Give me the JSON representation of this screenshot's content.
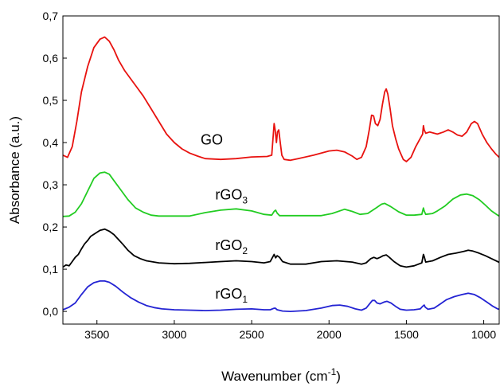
{
  "chart_data": {
    "type": "line",
    "xlabel": "Wavenumber (cm",
    "xlabel_sup": "-1",
    "xlabel_end": ")",
    "ylabel": "Absorbance (a.u.)",
    "xlim": [
      3720,
      900
    ],
    "ylim": [
      -0.03,
      0.7
    ],
    "x_reversed": true,
    "x_ticks": [
      3500,
      3000,
      2500,
      2000,
      1500,
      1000
    ],
    "x_tick_labels": [
      "3500",
      "3000",
      "2500",
      "2000",
      "1500",
      "1000"
    ],
    "y_ticks": [
      0.0,
      0.1,
      0.2,
      0.3,
      0.4,
      0.5,
      0.6,
      0.7
    ],
    "y_tick_labels": [
      "0,0",
      "0,1",
      "0,2",
      "0,3",
      "0,4",
      "0,5",
      "0,6",
      "0,7"
    ],
    "grid": false,
    "series": [
      {
        "label_main": "GO",
        "label_sub": "",
        "color": "#e8120f",
        "label_x": 2830,
        "label_y": 0.395,
        "points": [
          [
            3720,
            0.37
          ],
          [
            3690,
            0.365
          ],
          [
            3660,
            0.39
          ],
          [
            3630,
            0.45
          ],
          [
            3600,
            0.52
          ],
          [
            3560,
            0.58
          ],
          [
            3520,
            0.625
          ],
          [
            3480,
            0.645
          ],
          [
            3450,
            0.65
          ],
          [
            3420,
            0.64
          ],
          [
            3390,
            0.62
          ],
          [
            3360,
            0.595
          ],
          [
            3320,
            0.57
          ],
          [
            3280,
            0.55
          ],
          [
            3240,
            0.53
          ],
          [
            3200,
            0.51
          ],
          [
            3150,
            0.48
          ],
          [
            3100,
            0.45
          ],
          [
            3050,
            0.42
          ],
          [
            3000,
            0.4
          ],
          [
            2950,
            0.385
          ],
          [
            2900,
            0.375
          ],
          [
            2850,
            0.368
          ],
          [
            2800,
            0.362
          ],
          [
            2700,
            0.36
          ],
          [
            2600,
            0.362
          ],
          [
            2500,
            0.366
          ],
          [
            2400,
            0.367
          ],
          [
            2370,
            0.37
          ],
          [
            2360,
            0.42
          ],
          [
            2355,
            0.445
          ],
          [
            2348,
            0.43
          ],
          [
            2340,
            0.4
          ],
          [
            2333,
            0.425
          ],
          [
            2325,
            0.43
          ],
          [
            2315,
            0.4
          ],
          [
            2305,
            0.37
          ],
          [
            2290,
            0.36
          ],
          [
            2250,
            0.358
          ],
          [
            2200,
            0.362
          ],
          [
            2100,
            0.37
          ],
          [
            2000,
            0.38
          ],
          [
            1950,
            0.382
          ],
          [
            1900,
            0.378
          ],
          [
            1850,
            0.368
          ],
          [
            1820,
            0.36
          ],
          [
            1790,
            0.365
          ],
          [
            1760,
            0.39
          ],
          [
            1740,
            0.43
          ],
          [
            1725,
            0.465
          ],
          [
            1712,
            0.463
          ],
          [
            1700,
            0.445
          ],
          [
            1685,
            0.44
          ],
          [
            1670,
            0.455
          ],
          [
            1655,
            0.49
          ],
          [
            1640,
            0.52
          ],
          [
            1630,
            0.527
          ],
          [
            1620,
            0.515
          ],
          [
            1605,
            0.48
          ],
          [
            1590,
            0.44
          ],
          [
            1570,
            0.41
          ],
          [
            1550,
            0.385
          ],
          [
            1520,
            0.36
          ],
          [
            1500,
            0.355
          ],
          [
            1470,
            0.365
          ],
          [
            1440,
            0.39
          ],
          [
            1410,
            0.41
          ],
          [
            1395,
            0.42
          ],
          [
            1390,
            0.44
          ],
          [
            1385,
            0.43
          ],
          [
            1375,
            0.422
          ],
          [
            1350,
            0.425
          ],
          [
            1300,
            0.42
          ],
          [
            1260,
            0.425
          ],
          [
            1230,
            0.43
          ],
          [
            1200,
            0.425
          ],
          [
            1170,
            0.418
          ],
          [
            1140,
            0.415
          ],
          [
            1110,
            0.425
          ],
          [
            1080,
            0.445
          ],
          [
            1060,
            0.45
          ],
          [
            1040,
            0.445
          ],
          [
            1010,
            0.42
          ],
          [
            980,
            0.4
          ],
          [
            950,
            0.385
          ],
          [
            920,
            0.372
          ],
          [
            900,
            0.365
          ]
        ]
      },
      {
        "label_main": "rGO",
        "label_sub": "3",
        "color": "#22cc22",
        "label_x": 2735,
        "label_y": 0.265,
        "points": [
          [
            3720,
            0.225
          ],
          [
            3680,
            0.226
          ],
          [
            3640,
            0.235
          ],
          [
            3600,
            0.255
          ],
          [
            3560,
            0.285
          ],
          [
            3520,
            0.315
          ],
          [
            3480,
            0.328
          ],
          [
            3450,
            0.33
          ],
          [
            3420,
            0.325
          ],
          [
            3390,
            0.31
          ],
          [
            3350,
            0.29
          ],
          [
            3300,
            0.265
          ],
          [
            3250,
            0.245
          ],
          [
            3200,
            0.235
          ],
          [
            3150,
            0.228
          ],
          [
            3100,
            0.226
          ],
          [
            3000,
            0.226
          ],
          [
            2900,
            0.226
          ],
          [
            2800,
            0.234
          ],
          [
            2700,
            0.24
          ],
          [
            2600,
            0.243
          ],
          [
            2500,
            0.238
          ],
          [
            2420,
            0.23
          ],
          [
            2370,
            0.228
          ],
          [
            2355,
            0.237
          ],
          [
            2345,
            0.24
          ],
          [
            2335,
            0.233
          ],
          [
            2320,
            0.227
          ],
          [
            2250,
            0.227
          ],
          [
            2150,
            0.227
          ],
          [
            2050,
            0.227
          ],
          [
            1980,
            0.232
          ],
          [
            1900,
            0.242
          ],
          [
            1850,
            0.237
          ],
          [
            1800,
            0.23
          ],
          [
            1750,
            0.232
          ],
          [
            1700,
            0.244
          ],
          [
            1660,
            0.254
          ],
          [
            1640,
            0.256
          ],
          [
            1600,
            0.248
          ],
          [
            1550,
            0.236
          ],
          [
            1500,
            0.228
          ],
          [
            1450,
            0.228
          ],
          [
            1400,
            0.23
          ],
          [
            1390,
            0.245
          ],
          [
            1385,
            0.238
          ],
          [
            1375,
            0.23
          ],
          [
            1330,
            0.232
          ],
          [
            1300,
            0.238
          ],
          [
            1250,
            0.25
          ],
          [
            1200,
            0.266
          ],
          [
            1150,
            0.276
          ],
          [
            1110,
            0.278
          ],
          [
            1070,
            0.274
          ],
          [
            1030,
            0.265
          ],
          [
            990,
            0.252
          ],
          [
            950,
            0.238
          ],
          [
            910,
            0.228
          ],
          [
            900,
            0.226
          ]
        ]
      },
      {
        "label_main": "rGO",
        "label_sub": "2",
        "color": "#000000",
        "label_x": 2735,
        "label_y": 0.145,
        "points": [
          [
            3720,
            0.105
          ],
          [
            3700,
            0.11
          ],
          [
            3680,
            0.108
          ],
          [
            3660,
            0.118
          ],
          [
            3640,
            0.128
          ],
          [
            3620,
            0.135
          ],
          [
            3600,
            0.148
          ],
          [
            3580,
            0.16
          ],
          [
            3560,
            0.168
          ],
          [
            3540,
            0.178
          ],
          [
            3510,
            0.185
          ],
          [
            3480,
            0.192
          ],
          [
            3450,
            0.195
          ],
          [
            3420,
            0.19
          ],
          [
            3390,
            0.182
          ],
          [
            3360,
            0.17
          ],
          [
            3330,
            0.158
          ],
          [
            3300,
            0.145
          ],
          [
            3260,
            0.132
          ],
          [
            3220,
            0.125
          ],
          [
            3180,
            0.12
          ],
          [
            3100,
            0.115
          ],
          [
            3000,
            0.113
          ],
          [
            2900,
            0.114
          ],
          [
            2800,
            0.116
          ],
          [
            2700,
            0.118
          ],
          [
            2600,
            0.12
          ],
          [
            2500,
            0.118
          ],
          [
            2420,
            0.115
          ],
          [
            2380,
            0.118
          ],
          [
            2365,
            0.128
          ],
          [
            2355,
            0.135
          ],
          [
            2345,
            0.127
          ],
          [
            2335,
            0.132
          ],
          [
            2320,
            0.128
          ],
          [
            2300,
            0.118
          ],
          [
            2250,
            0.112
          ],
          [
            2150,
            0.112
          ],
          [
            2050,
            0.118
          ],
          [
            1950,
            0.12
          ],
          [
            1850,
            0.117
          ],
          [
            1790,
            0.112
          ],
          [
            1760,
            0.115
          ],
          [
            1730,
            0.125
          ],
          [
            1710,
            0.128
          ],
          [
            1690,
            0.125
          ],
          [
            1670,
            0.128
          ],
          [
            1650,
            0.132
          ],
          [
            1630,
            0.134
          ],
          [
            1610,
            0.128
          ],
          [
            1580,
            0.118
          ],
          [
            1540,
            0.108
          ],
          [
            1500,
            0.105
          ],
          [
            1450,
            0.108
          ],
          [
            1400,
            0.115
          ],
          [
            1390,
            0.135
          ],
          [
            1385,
            0.13
          ],
          [
            1375,
            0.117
          ],
          [
            1330,
            0.12
          ],
          [
            1280,
            0.128
          ],
          [
            1230,
            0.135
          ],
          [
            1180,
            0.138
          ],
          [
            1130,
            0.142
          ],
          [
            1100,
            0.145
          ],
          [
            1070,
            0.143
          ],
          [
            1030,
            0.138
          ],
          [
            990,
            0.132
          ],
          [
            950,
            0.125
          ],
          [
            910,
            0.118
          ],
          [
            900,
            0.116
          ]
        ]
      },
      {
        "label_main": "rGO",
        "label_sub": "1",
        "color": "#2323d3",
        "label_x": 2735,
        "label_y": 0.03,
        "points": [
          [
            3720,
            0.004
          ],
          [
            3680,
            0.01
          ],
          [
            3640,
            0.02
          ],
          [
            3600,
            0.04
          ],
          [
            3560,
            0.058
          ],
          [
            3520,
            0.068
          ],
          [
            3480,
            0.072
          ],
          [
            3450,
            0.072
          ],
          [
            3420,
            0.069
          ],
          [
            3380,
            0.06
          ],
          [
            3330,
            0.045
          ],
          [
            3280,
            0.032
          ],
          [
            3230,
            0.022
          ],
          [
            3180,
            0.014
          ],
          [
            3130,
            0.009
          ],
          [
            3080,
            0.006
          ],
          [
            3000,
            0.004
          ],
          [
            2900,
            0.003
          ],
          [
            2800,
            0.002
          ],
          [
            2700,
            0.003
          ],
          [
            2600,
            0.005
          ],
          [
            2500,
            0.006
          ],
          [
            2420,
            0.004
          ],
          [
            2380,
            0.004
          ],
          [
            2360,
            0.007
          ],
          [
            2348,
            0.008
          ],
          [
            2335,
            0.004
          ],
          [
            2300,
            0.001
          ],
          [
            2250,
            0.0
          ],
          [
            2150,
            0.002
          ],
          [
            2050,
            0.008
          ],
          [
            1980,
            0.014
          ],
          [
            1930,
            0.015
          ],
          [
            1880,
            0.012
          ],
          [
            1830,
            0.006
          ],
          [
            1790,
            0.003
          ],
          [
            1760,
            0.008
          ],
          [
            1740,
            0.017
          ],
          [
            1720,
            0.026
          ],
          [
            1705,
            0.026
          ],
          [
            1690,
            0.02
          ],
          [
            1670,
            0.018
          ],
          [
            1645,
            0.022
          ],
          [
            1625,
            0.024
          ],
          [
            1600,
            0.02
          ],
          [
            1570,
            0.012
          ],
          [
            1540,
            0.005
          ],
          [
            1500,
            0.003
          ],
          [
            1450,
            0.004
          ],
          [
            1410,
            0.006
          ],
          [
            1395,
            0.012
          ],
          [
            1385,
            0.015
          ],
          [
            1378,
            0.01
          ],
          [
            1360,
            0.005
          ],
          [
            1320,
            0.008
          ],
          [
            1280,
            0.018
          ],
          [
            1240,
            0.028
          ],
          [
            1190,
            0.035
          ],
          [
            1140,
            0.04
          ],
          [
            1100,
            0.043
          ],
          [
            1060,
            0.04
          ],
          [
            1020,
            0.032
          ],
          [
            980,
            0.022
          ],
          [
            940,
            0.012
          ],
          [
            910,
            0.006
          ],
          [
            900,
            0.005
          ]
        ]
      }
    ]
  }
}
